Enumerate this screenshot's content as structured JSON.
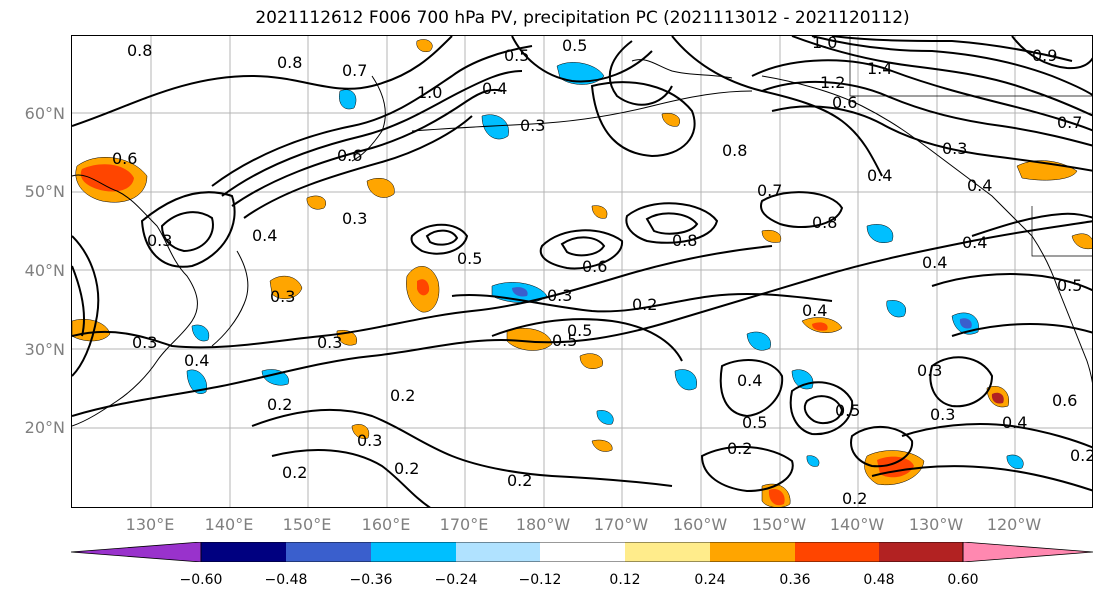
{
  "title": "2021112612 F006 700 hPa PV, precipitation PC (2021113012 - 2021120112)",
  "lat_labels": [
    "60°N",
    "50°N",
    "40°N",
    "30°N",
    "20°N"
  ],
  "lon_labels": [
    "130°E",
    "140°E",
    "150°E",
    "160°E",
    "170°E",
    "180°W",
    "170°W",
    "160°W",
    "150°W",
    "140°W",
    "130°W",
    "120°W"
  ],
  "contour_labels": [
    "0.8",
    "0.8",
    "0.7",
    "0.6",
    "0.6",
    "0.3",
    "0.4",
    "1.0",
    "0.4",
    "0.5",
    "0.3",
    "0.5",
    "1.0",
    "1.4",
    "1.2",
    "0.6",
    "0.8",
    "0.9",
    "0.3",
    "0.4",
    "0.7",
    "0.8",
    "0.4",
    "0.4",
    "0.5",
    "0.6",
    "0.8",
    "0.3",
    "0.2",
    "0.3",
    "0.5",
    "0.3",
    "0.3",
    "0.4",
    "0.4",
    "0.5",
    "0.2",
    "0.2",
    "0.2",
    "0.3",
    "0.2",
    "0.2",
    "0.4",
    "0.5",
    "0.5",
    "0.2",
    "0.2",
    "0.3",
    "0.3",
    "0.4",
    "0.6",
    "0.2",
    "0.7",
    "0.5",
    "0.3",
    "0.4"
  ],
  "colorbar": {
    "ticks": [
      "−0.60",
      "−0.48",
      "−0.36",
      "−0.24",
      "−0.12",
      "0.12",
      "0.24",
      "0.36",
      "0.48",
      "0.60"
    ],
    "colors": [
      "#9932cc",
      "#000080",
      "#3a5fcd",
      "#00bfff",
      "#b0e2ff",
      "#ffffff",
      "#ffec8b",
      "#ffa500",
      "#ff4500",
      "#b22222",
      "#ff88b0"
    ]
  },
  "colors": {
    "contour": "#000000",
    "coast": "#000000",
    "grid": "#b4b4b4",
    "axis_text": "#808080"
  }
}
